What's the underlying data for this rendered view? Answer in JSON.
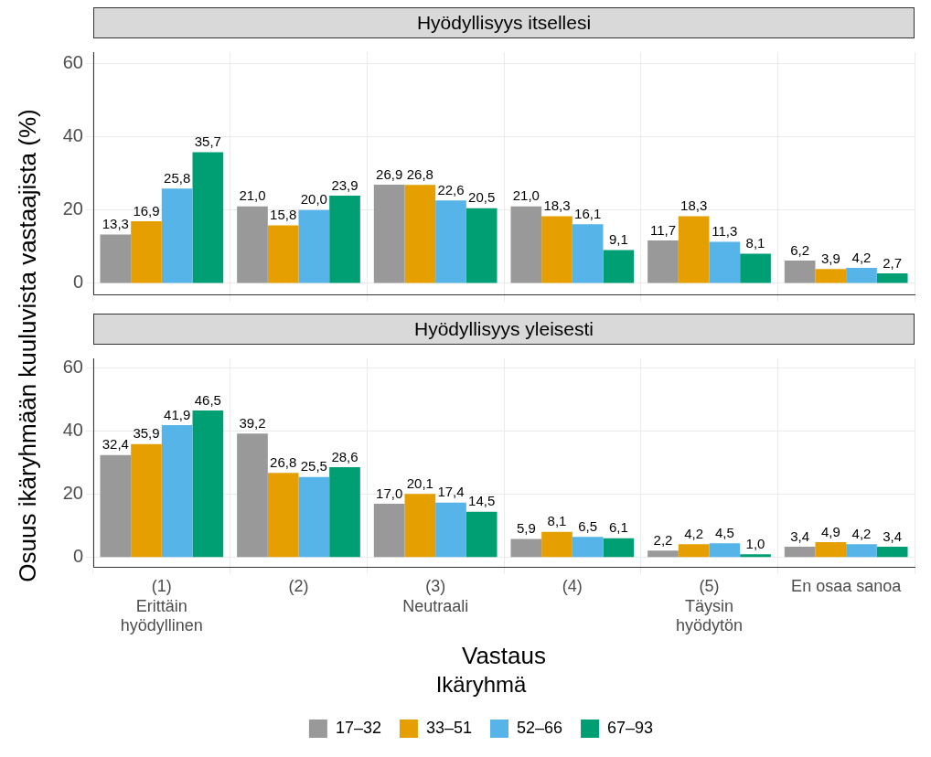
{
  "chart_data": [
    {
      "type": "bar",
      "title": "Hyödyllisyys itsellesi",
      "ylabel": "Osuus ikäryhmään kuuluvista vastaajista (%)",
      "categories": [
        null,
        null,
        null,
        null,
        null,
        null
      ],
      "series": [
        {
          "color": "#999999",
          "values": [
            13.3,
            21.0,
            26.9,
            21.0,
            11.7,
            6.2
          ],
          "value_labels": [
            "13,3",
            "21,0",
            "26,9",
            "21,0",
            "11,7",
            "6,2"
          ]
        },
        {
          "color": "#e69f00",
          "values": [
            16.9,
            15.8,
            26.8,
            18.3,
            18.3,
            3.9
          ],
          "value_labels": [
            "16,9",
            "15,8",
            "26,8",
            "18,3",
            "18,3",
            "3,9"
          ]
        },
        {
          "color": "#56b4e9",
          "values": [
            25.8,
            20.0,
            22.6,
            16.1,
            11.3,
            4.2
          ],
          "value_labels": [
            "25,8",
            "20,0",
            "22,6",
            "16,1",
            "11,3",
            "4,2"
          ]
        },
        {
          "color": "#009e73",
          "values": [
            35.7,
            23.9,
            20.5,
            9.1,
            8.1,
            2.7
          ],
          "value_labels": [
            "35,7",
            "23,9",
            "20,5",
            "9,1",
            "8,1",
            "2,7"
          ]
        }
      ],
      "ylim": [
        -3,
        63
      ],
      "yticks": [
        0,
        20,
        40,
        60
      ],
      "grid": true,
      "tick_labels": "y"
    },
    {
      "type": "bar",
      "title": "Hyödyllisyys yleisesti",
      "xlabel": "Vastaus",
      "legend_title": "Ikäryhmä",
      "categories": [
        "(1)\nErittäin\nhyödyllinen",
        "(2)",
        "(3)\nNeutraali",
        "(4)",
        "(5)\nTäysin\nhyödytön",
        "En osaa sanoa"
      ],
      "series": [
        {
          "name": "17–32",
          "color": "#999999",
          "values": [
            32.4,
            39.2,
            17.0,
            5.9,
            2.2,
            3.4
          ],
          "value_labels": [
            "32,4",
            "39,2",
            "17,0",
            "5,9",
            "2,2",
            "3,4"
          ]
        },
        {
          "name": "33–51",
          "color": "#e69f00",
          "values": [
            35.9,
            26.8,
            20.1,
            8.1,
            4.2,
            4.9
          ],
          "value_labels": [
            "35,9",
            "26,8",
            "20,1",
            "8,1",
            "4,2",
            "4,9"
          ]
        },
        {
          "name": "52–66",
          "color": "#56b4e9",
          "values": [
            41.9,
            25.5,
            17.4,
            6.5,
            4.5,
            4.2
          ],
          "value_labels": [
            "41,9",
            "25,5",
            "17,4",
            "6,5",
            "4,5",
            "4,2"
          ]
        },
        {
          "name": "67–93",
          "color": "#009e73",
          "values": [
            46.5,
            28.6,
            14.5,
            6.1,
            1.0,
            3.4
          ],
          "value_labels": [
            "46,5",
            "28,6",
            "14,5",
            "6,1",
            "1,0",
            "3,4"
          ]
        }
      ],
      "ylim": [
        -3,
        63
      ],
      "yticks": [
        0,
        20,
        40,
        60
      ],
      "grid": true,
      "legend": "bottom"
    }
  ]
}
